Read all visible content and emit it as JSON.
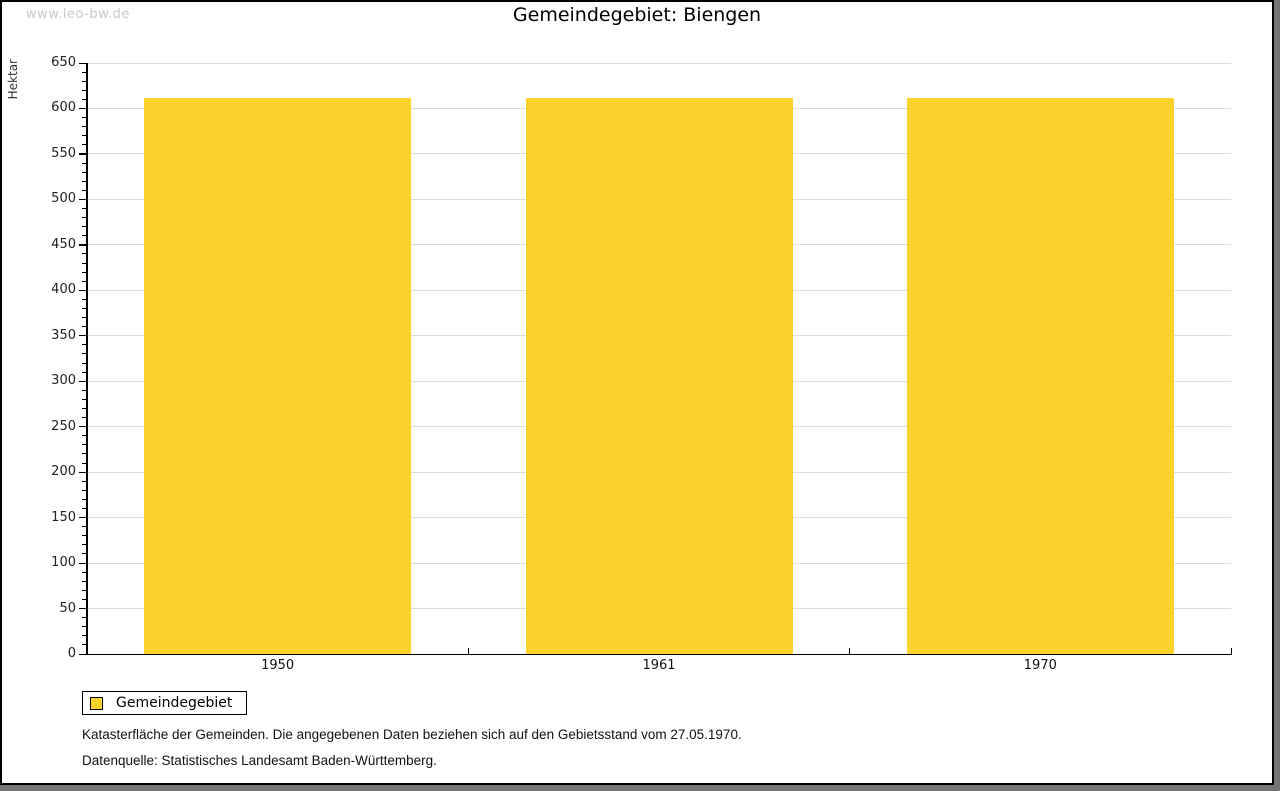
{
  "watermark": "www.leo-bw.de",
  "chart_data": {
    "type": "bar",
    "title": "Gemeindegebiet: Biengen",
    "xlabel": "",
    "ylabel": "Hektar",
    "categories": [
      "1950",
      "1961",
      "1970"
    ],
    "series": [
      {
        "name": "Gemeindegebiet",
        "values": [
          611,
          611,
          611
        ]
      }
    ],
    "ylim": [
      0,
      650
    ],
    "y_major_step": 50,
    "y_minor_step": 10,
    "grid": true,
    "legend_position": "bottom-left",
    "bar_color": "#FCD22C"
  },
  "legend": {
    "items": [
      {
        "label": "Gemeindegebiet",
        "color": "#FCD22C"
      }
    ]
  },
  "captions": {
    "note": "Katasterfläche der Gemeinden. Die angegebenen Daten beziehen sich auf den Gebietsstand vom 27.05.1970.",
    "source": "Datenquelle: Statistisches Landesamt Baden-Württemberg."
  },
  "colors": {
    "bar": "#FCD22C",
    "gridline": "#dcdcdc",
    "axis": "#000000",
    "watermark": "#c9c9c9",
    "panel_border": "#000000",
    "shadow": "#757575",
    "background": "#ffffff"
  }
}
